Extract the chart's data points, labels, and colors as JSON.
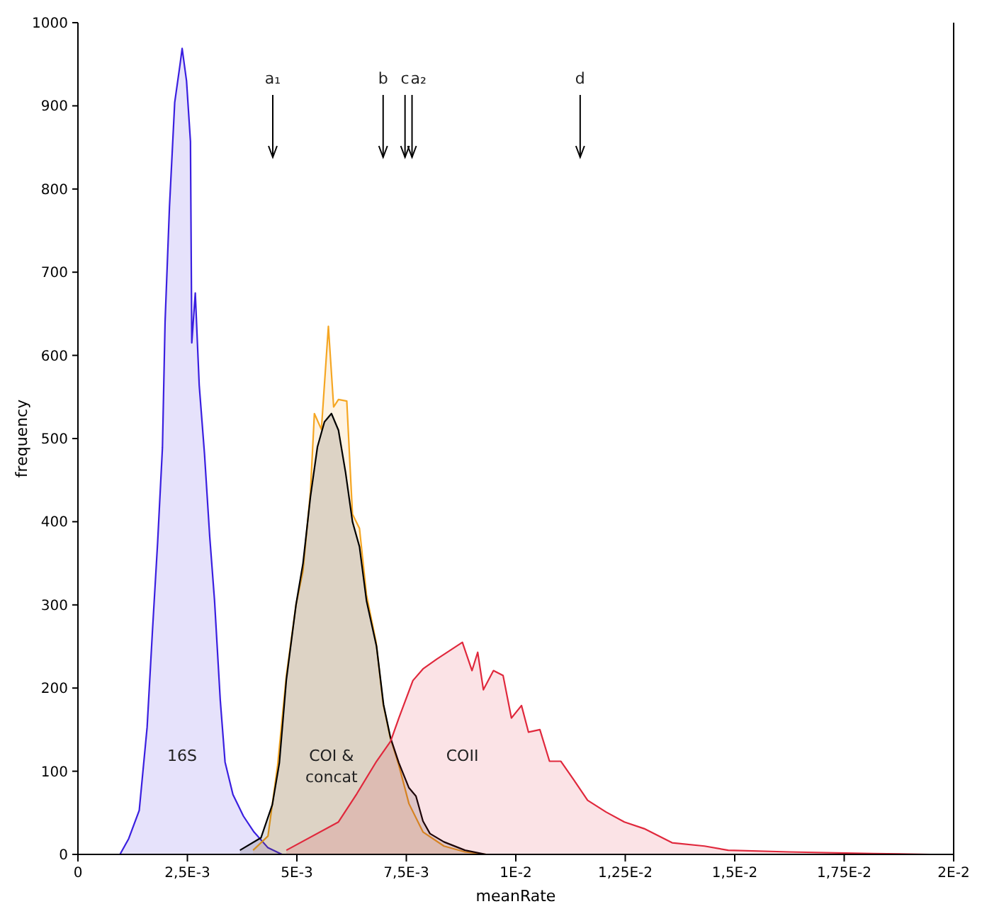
{
  "chart_data": {
    "type": "area",
    "xlabel": "meanRate",
    "ylabel": "frequency",
    "xlim": [
      0,
      0.02
    ],
    "xticks": [
      0,
      {
        "value": 0.0025,
        "label": "2,5E-3"
      },
      {
        "value": 0.005,
        "label": "5E-3"
      },
      {
        "value": 0.0075,
        "label": "7,5E-3"
      },
      {
        "value": 0.01,
        "label": "1E-2"
      },
      {
        "value": 0.0125,
        "label": "1,25E-2"
      },
      {
        "value": 0.015,
        "label": "1,5E-2"
      },
      {
        "value": 0.0175,
        "label": "1,75E-2"
      },
      {
        "value": 0.02,
        "label": "2E-2"
      }
    ],
    "ylim": [
      0,
      1000
    ],
    "yticks": [
      0,
      100,
      200,
      300,
      400,
      500,
      600,
      700,
      800,
      900,
      1000
    ],
    "grid": false,
    "series": [
      {
        "name": "16S",
        "color": "#3a1fe0",
        "x": [
          0.00096,
          0.00116,
          0.0014,
          0.00158,
          0.0017,
          0.00182,
          0.00193,
          0.00199,
          0.00209,
          0.00221,
          0.00233,
          0.00238,
          0.00248,
          0.00257,
          0.0026,
          0.00268,
          0.00277,
          0.00289,
          0.00301,
          0.00312,
          0.00325,
          0.00336,
          0.00354,
          0.00378,
          0.00402,
          0.00434,
          0.00466
        ],
        "values": [
          0,
          19,
          53,
          153,
          267,
          375,
          489,
          640,
          778,
          904,
          949,
          969,
          930,
          857,
          615,
          675,
          564,
          482,
          382,
          305,
          186,
          111,
          72,
          46,
          27,
          8,
          0
        ]
      },
      {
        "color": "#f5a623",
        "x": [
          0.004,
          0.00434,
          0.00456,
          0.00476,
          0.00498,
          0.00514,
          0.00531,
          0.0054,
          0.00556,
          0.00572,
          0.00584,
          0.00595,
          0.00614,
          0.00627,
          0.00643,
          0.00659,
          0.00681,
          0.00697,
          0.00713,
          0.00733,
          0.00756,
          0.00788,
          0.00836,
          0.00884,
          0.00932
        ],
        "values": [
          5,
          22,
          107,
          215,
          300,
          341,
          436,
          530,
          511,
          635,
          538,
          547,
          545,
          409,
          392,
          312,
          255,
          181,
          141,
          107,
          61,
          27,
          10,
          3,
          0
        ]
      },
      {
        "name": "COI & concat",
        "color": "#000000",
        "x": [
          0.0037,
          0.00418,
          0.00444,
          0.0046,
          0.00476,
          0.00498,
          0.00514,
          0.00531,
          0.00547,
          0.00563,
          0.00579,
          0.00595,
          0.00611,
          0.00627,
          0.00643,
          0.00659,
          0.00682,
          0.00698,
          0.00714,
          0.00733,
          0.00756,
          0.00772,
          0.00788,
          0.00804,
          0.00836,
          0.00884,
          0.00932
        ],
        "values": [
          5,
          20,
          60,
          110,
          210,
          300,
          350,
          430,
          490,
          520,
          530,
          510,
          460,
          400,
          370,
          305,
          250,
          180,
          140,
          110,
          80,
          70,
          40,
          25,
          15,
          5,
          0
        ]
      },
      {
        "name": "COII",
        "color": "#e0283c",
        "x": [
          0.00476,
          0.00595,
          0.00637,
          0.00682,
          0.00714,
          0.00733,
          0.00765,
          0.00788,
          0.0082,
          0.00878,
          0.009,
          0.00913,
          0.00926,
          0.00949,
          0.00971,
          0.0099,
          0.01013,
          0.01029,
          0.01055,
          0.01077,
          0.01103,
          0.01132,
          0.01164,
          0.01206,
          0.01248,
          0.01293,
          0.01357,
          0.01431,
          0.01485,
          0.01624,
          0.01817,
          0.01945
        ],
        "values": [
          5,
          39,
          73,
          112,
          136,
          164,
          209,
          223,
          235,
          255,
          221,
          243,
          198,
          221,
          215,
          164,
          179,
          147,
          150,
          112,
          112,
          90,
          65,
          51,
          39,
          31,
          14,
          10,
          5,
          3,
          1,
          0
        ]
      }
    ],
    "ref_lines": [
      {
        "axis": "x",
        "value": 0.00445,
        "label": "a₁"
      },
      {
        "axis": "x",
        "value": 0.00697,
        "label": "b"
      },
      {
        "axis": "x",
        "value": 0.00747,
        "label": "c"
      },
      {
        "axis": "x",
        "value": 0.00763,
        "label": "a₂"
      },
      {
        "axis": "x",
        "value": 0.01147,
        "label": "d"
      }
    ]
  }
}
